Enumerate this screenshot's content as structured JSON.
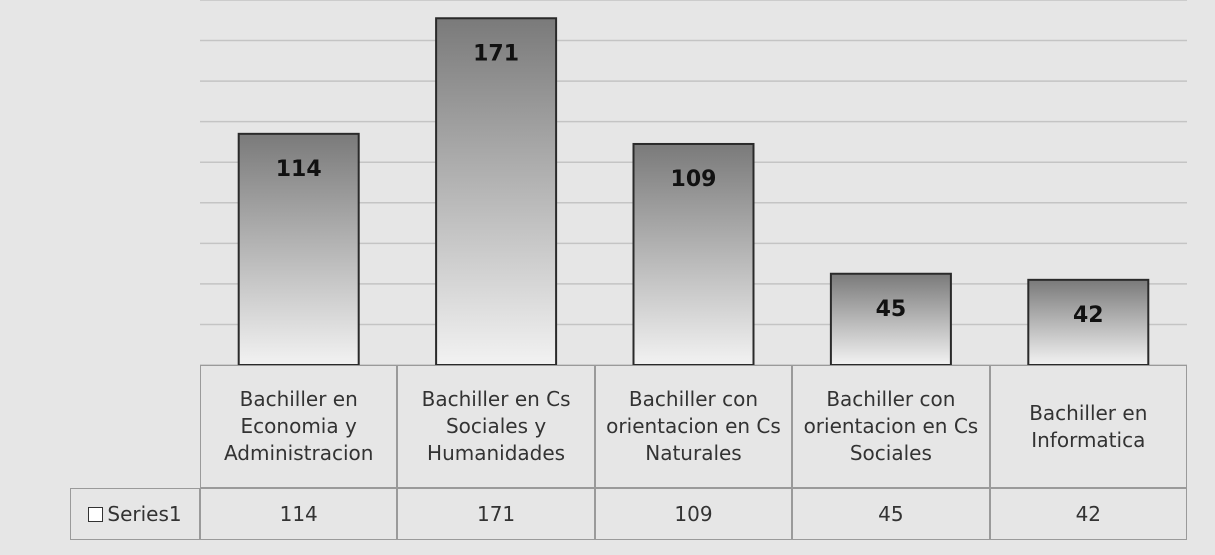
{
  "chart_data": {
    "type": "bar",
    "categories": [
      "Bachiller en Economia y Administracion",
      "Bachiller en Cs Sociales y Humanidades",
      "Bachiller con orientacion en Cs Naturales",
      "Bachiller con orientacion en Cs Sociales",
      "Bachiller en Informatica"
    ],
    "series": [
      {
        "name": "Series1",
        "color": "#9a9a9a",
        "values": [
          114,
          171,
          109,
          45,
          42
        ]
      }
    ],
    "ylim": [
      0,
      180
    ],
    "yticks": [
      0,
      20,
      40,
      60,
      80,
      100,
      120,
      140,
      160,
      180
    ],
    "grid": true,
    "data_labels": true
  }
}
